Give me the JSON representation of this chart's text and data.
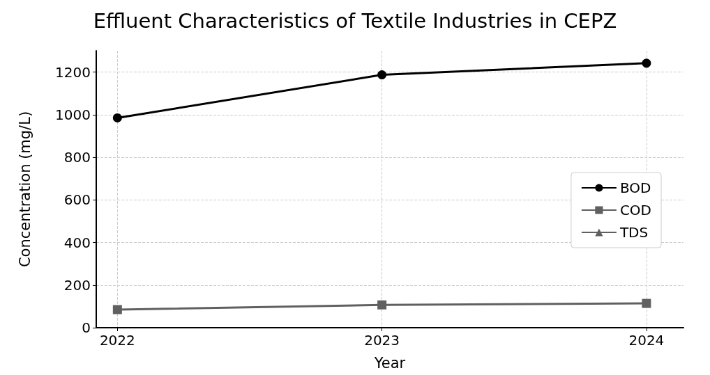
{
  "chart_data": {
    "type": "line",
    "title": "Effluent Characteristics of Textile Industries in CEPZ",
    "xlabel": "Year",
    "ylabel": "Concentration (mg/L)",
    "x": [
      2022,
      2023,
      2024
    ],
    "xlim": [
      2021.92,
      2024.14
    ],
    "xticks": [
      2022,
      2023,
      2024
    ],
    "ylim": [
      0,
      1300
    ],
    "yticks": [
      0,
      200,
      400,
      600,
      800,
      1000,
      1200
    ],
    "series": [
      {
        "name": "BOD",
        "color": "#000000",
        "marker": "circle",
        "values": [
          985,
          1187,
          1242
        ]
      },
      {
        "name": "COD",
        "color": "#606060",
        "marker": "square",
        "values": [
          85,
          107,
          114
        ]
      },
      {
        "name": "TDS",
        "color": "#606060",
        "marker": "triangle",
        "values": [
          null,
          null,
          null
        ]
      }
    ],
    "grid": true,
    "legend": "right",
    "line_style": "solid"
  }
}
